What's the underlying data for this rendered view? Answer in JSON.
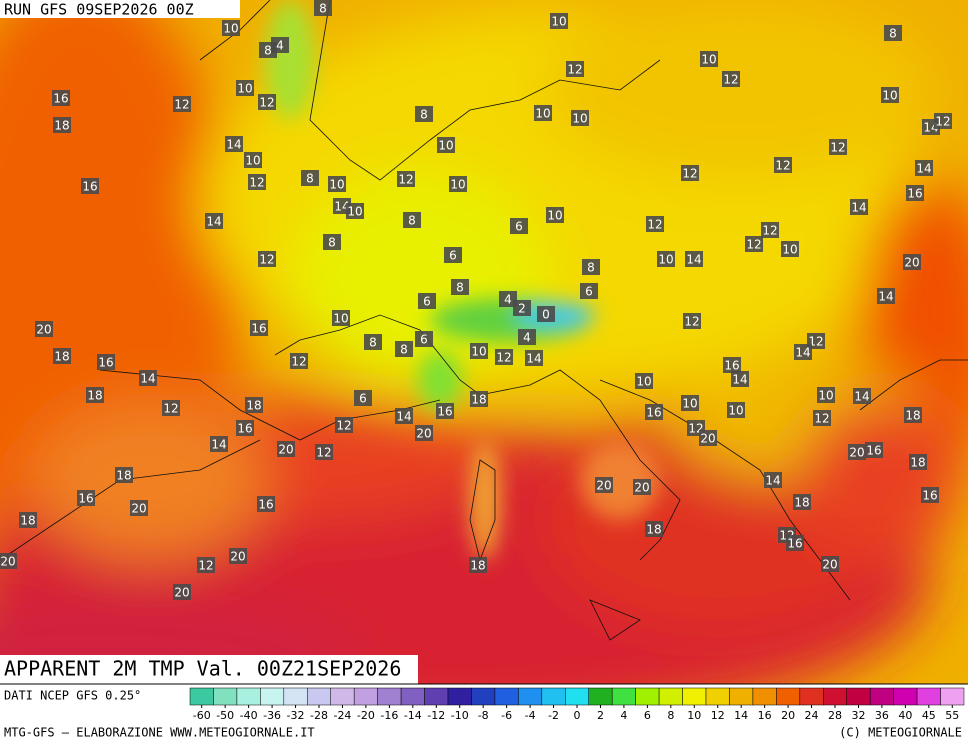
{
  "header": {
    "run": "RUN GFS 09SEP2026 00Z"
  },
  "title": "APPARENT 2M TMP Val. 00Z21SEP2026",
  "footer": {
    "source": "DATI NCEP GFS 0.25°",
    "credit": "MTG-GFS — ELABORAZIONE WWW.METEOGIORNALE.IT",
    "copyright": "(C) METEOGIORNALE"
  },
  "colorbar": {
    "ticks": [
      -60,
      -50,
      -40,
      -36,
      -32,
      -28,
      -24,
      -20,
      -16,
      -14,
      -12,
      -10,
      -8,
      -6,
      -4,
      -2,
      0,
      2,
      4,
      6,
      8,
      10,
      12,
      14,
      16,
      20,
      24,
      28,
      32,
      36,
      40,
      45,
      55
    ],
    "colors": [
      "#3cc8a0",
      "#80e0c0",
      "#a8f0e0",
      "#c8f4f0",
      "#d4e4f4",
      "#c8c8f0",
      "#d0b8e8",
      "#c0a0e0",
      "#a080d0",
      "#8060c0",
      "#6040b0",
      "#3020a0",
      "#2040c0",
      "#2060e0",
      "#2090f0",
      "#20c0f0",
      "#20e0f0",
      "#20b020",
      "#40e040",
      "#a0f000",
      "#d0f000",
      "#f0f000",
      "#f0d000",
      "#f0b000",
      "#f09000",
      "#f06000",
      "#e03020",
      "#d01030",
      "#c00040",
      "#c00080",
      "#d000b0",
      "#e040e0",
      "#f0a0f0"
    ]
  },
  "map_labels": [
    10,
    8,
    4,
    8,
    10,
    12,
    8,
    10,
    12,
    10,
    10,
    12,
    12,
    16,
    18,
    8,
    10,
    10,
    10,
    14,
    12,
    14,
    10,
    10,
    12,
    12,
    14,
    12,
    8,
    10,
    12,
    10,
    12,
    16,
    16,
    14,
    10,
    8,
    6,
    10,
    12,
    14,
    14,
    8,
    6,
    8,
    10,
    14,
    12,
    12,
    10,
    20,
    12,
    8,
    4,
    6,
    6,
    14,
    20,
    16,
    10,
    2,
    0,
    12,
    8,
    8,
    6,
    4,
    10,
    12,
    14,
    18,
    16,
    12,
    12,
    14,
    16,
    14,
    14,
    10,
    18,
    6,
    18,
    16,
    14,
    18,
    12,
    10,
    14,
    10,
    12,
    16,
    18,
    12,
    16,
    12,
    14,
    20,
    12,
    20,
    20,
    12,
    20,
    16,
    18,
    18,
    20,
    20,
    14,
    16,
    16,
    20,
    16,
    18,
    18,
    18,
    12,
    16,
    20,
    18,
    20,
    20,
    20
  ]
}
